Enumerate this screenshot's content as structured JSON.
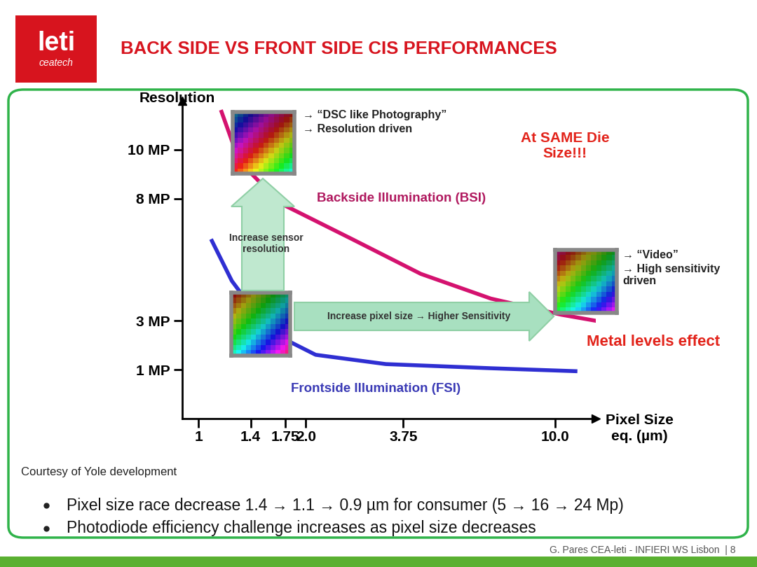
{
  "chart_data": {
    "type": "line",
    "title": "BACK SIDE VS FRONT SIDE CIS PERFORMANCES",
    "x_label": "Pixel Size\neq. (µm)",
    "y_label": "Resolution",
    "log": "x",
    "grid": false,
    "xlim": [
      0.9,
      13
    ],
    "xticks": [
      1,
      1.4,
      1.75,
      {
        "value": 2,
        "label": "2.0"
      },
      3.75,
      {
        "value": 10,
        "label": "10.0"
      }
    ],
    "ylim": [
      -1,
      12
    ],
    "yticks": [
      {
        "value": 1,
        "label": "1 MP"
      },
      {
        "value": 3,
        "label": "3 MP"
      },
      {
        "value": 8,
        "label": "8 MP"
      },
      {
        "value": 10,
        "label": "10 MP"
      }
    ],
    "series": [
      {
        "name": "Backside Illumination (BSI)",
        "color": "#d4126f",
        "x": [
          1.16,
          1.3,
          1.7,
          2.68,
          4.2,
          6.6,
          10.4,
          13.5
        ],
        "values": [
          11.55,
          9.53,
          7.8,
          6.36,
          4.92,
          3.91,
          3.25,
          2.96
        ]
      },
      {
        "name": "Frontside Illumination (FSI)",
        "color": "#2f2fd2",
        "x": [
          1.09,
          1.24,
          1.42,
          1.7,
          2.13,
          3.35,
          6.6,
          11.4
        ],
        "values": [
          6.27,
          4.63,
          3.48,
          2.33,
          1.61,
          1.23,
          1.06,
          0.94
        ]
      }
    ],
    "annotations": [
      "→ “DSC like Photography”",
      "→ Resolution driven",
      "→ “Video”",
      "→ High sensitivity\ndriven",
      "Increase sensor\nresolution",
      "Increase pixel size → Higher Sensitivity",
      "At SAME Die\nSize!!!",
      "Metal levels effect",
      "Courtesy of Yole development"
    ]
  },
  "slide": {
    "logo": {
      "name": "leti",
      "subtitle": "ceatech"
    },
    "bullets": [
      "Pixel size race decrease 1.4 → 1.1 → 0.9 µm for consumer (5 → 16 → 24 Mp)",
      "Photodiode efficiency challenge increases as pixel size decreases"
    ],
    "footer": "G. Pares CEA-leti - INFIERI WS Lisbon  | 8"
  }
}
